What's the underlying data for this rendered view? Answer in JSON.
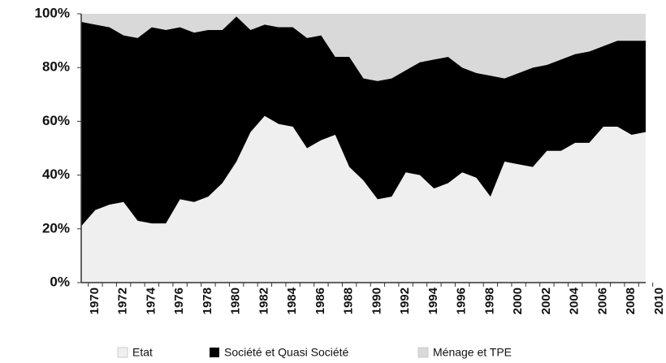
{
  "chart_data": {
    "type": "stacked-area",
    "categories": [
      "1970",
      null,
      "1972",
      null,
      "1974",
      null,
      "1976",
      null,
      "1978",
      null,
      "1980",
      null,
      "1982",
      null,
      "1984",
      null,
      "1986",
      null,
      "1988",
      null,
      "1990",
      null,
      "1992",
      null,
      "1994",
      null,
      "1996",
      null,
      "1998",
      null,
      "2000",
      null,
      "2002",
      null,
      "2004",
      null,
      "2006",
      null,
      "2008",
      null,
      "2010"
    ],
    "series": [
      {
        "name": "Etat",
        "color": "#efefef",
        "values": [
          21,
          27,
          29,
          30,
          23,
          22,
          22,
          31,
          30,
          32,
          37,
          45,
          56,
          62,
          59,
          58,
          50,
          53,
          55,
          43,
          38,
          31,
          32,
          41,
          40,
          35,
          37,
          41,
          39,
          32,
          45,
          44,
          43,
          49,
          49,
          52,
          52,
          58,
          58,
          55,
          56
        ]
      },
      {
        "name": "Société et Quasi Société",
        "color": "#000000",
        "values": [
          76,
          69,
          66,
          62,
          68,
          73,
          72,
          64,
          63,
          62,
          57,
          54,
          38,
          34,
          36,
          37,
          41,
          39,
          29,
          41,
          38,
          44,
          44,
          38,
          42,
          48,
          47,
          39,
          39,
          45,
          31,
          34,
          37,
          32,
          34,
          33,
          34,
          30,
          32,
          35,
          34
        ]
      },
      {
        "name": "Ménage et TPE",
        "color": "#d9d9d9",
        "values": [
          3,
          4,
          5,
          8,
          9,
          5,
          6,
          5,
          7,
          6,
          6,
          1,
          6,
          4,
          5,
          5,
          9,
          8,
          16,
          16,
          24,
          25,
          24,
          21,
          18,
          17,
          16,
          20,
          22,
          23,
          24,
          22,
          20,
          19,
          17,
          15,
          14,
          12,
          10,
          10,
          10
        ]
      }
    ],
    "ylim": [
      0,
      100
    ],
    "yticks": [
      {
        "value": 0,
        "label": "0%"
      },
      {
        "value": 20,
        "label": "20%"
      },
      {
        "value": 40,
        "label": "40%"
      },
      {
        "value": 60,
        "label": "60%"
      },
      {
        "value": 80,
        "label": "80%"
      },
      {
        "value": 100,
        "label": "100%"
      }
    ]
  }
}
